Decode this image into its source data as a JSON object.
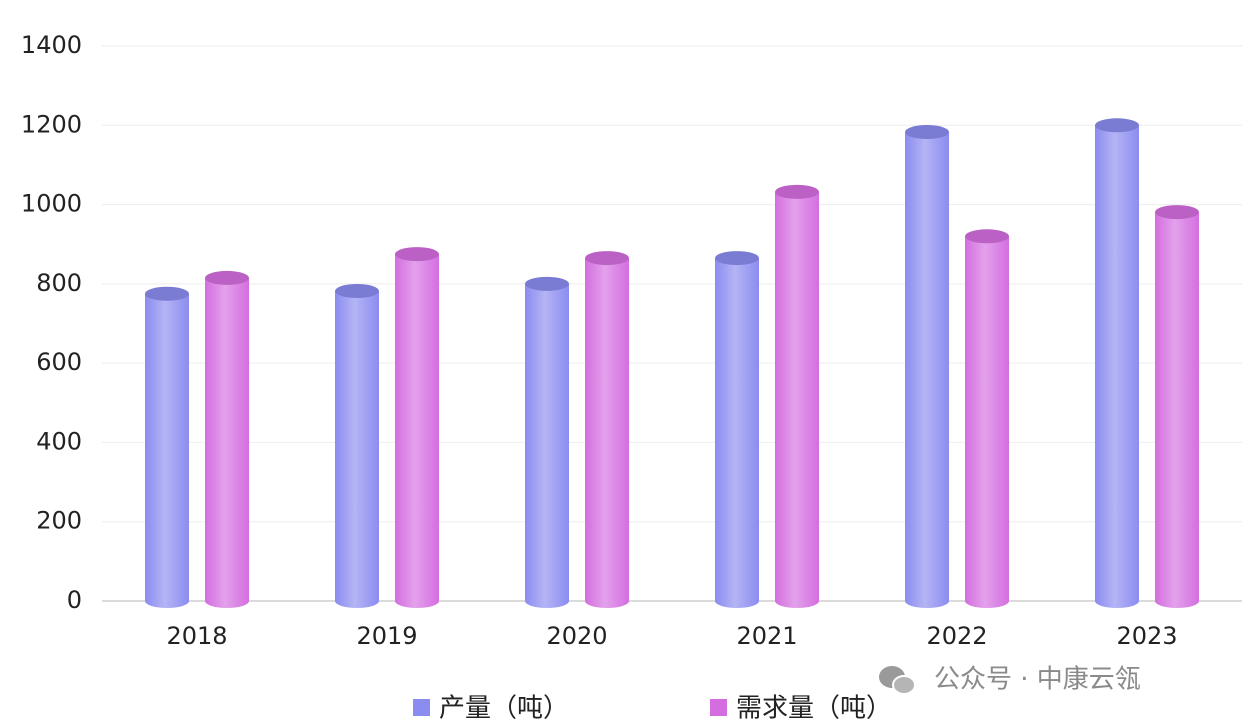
{
  "chart_data": {
    "type": "bar",
    "categories": [
      "2018",
      "2019",
      "2020",
      "2021",
      "2022",
      "2023"
    ],
    "series": [
      {
        "name": "产量（吨）",
        "color": "#8b8cf0",
        "values": [
          775,
          782,
          800,
          865,
          1183,
          1200
        ]
      },
      {
        "name": "需求量（吨）",
        "color": "#d46ee0",
        "values": [
          815,
          875,
          865,
          1032,
          920,
          981
        ]
      }
    ],
    "ylim": [
      0,
      1400
    ],
    "yticks": [
      0,
      200,
      400,
      600,
      800,
      1000,
      1200,
      1400
    ],
    "grid": true,
    "legend": "bottom",
    "watermark": "公众号 · 中康云瓴"
  }
}
